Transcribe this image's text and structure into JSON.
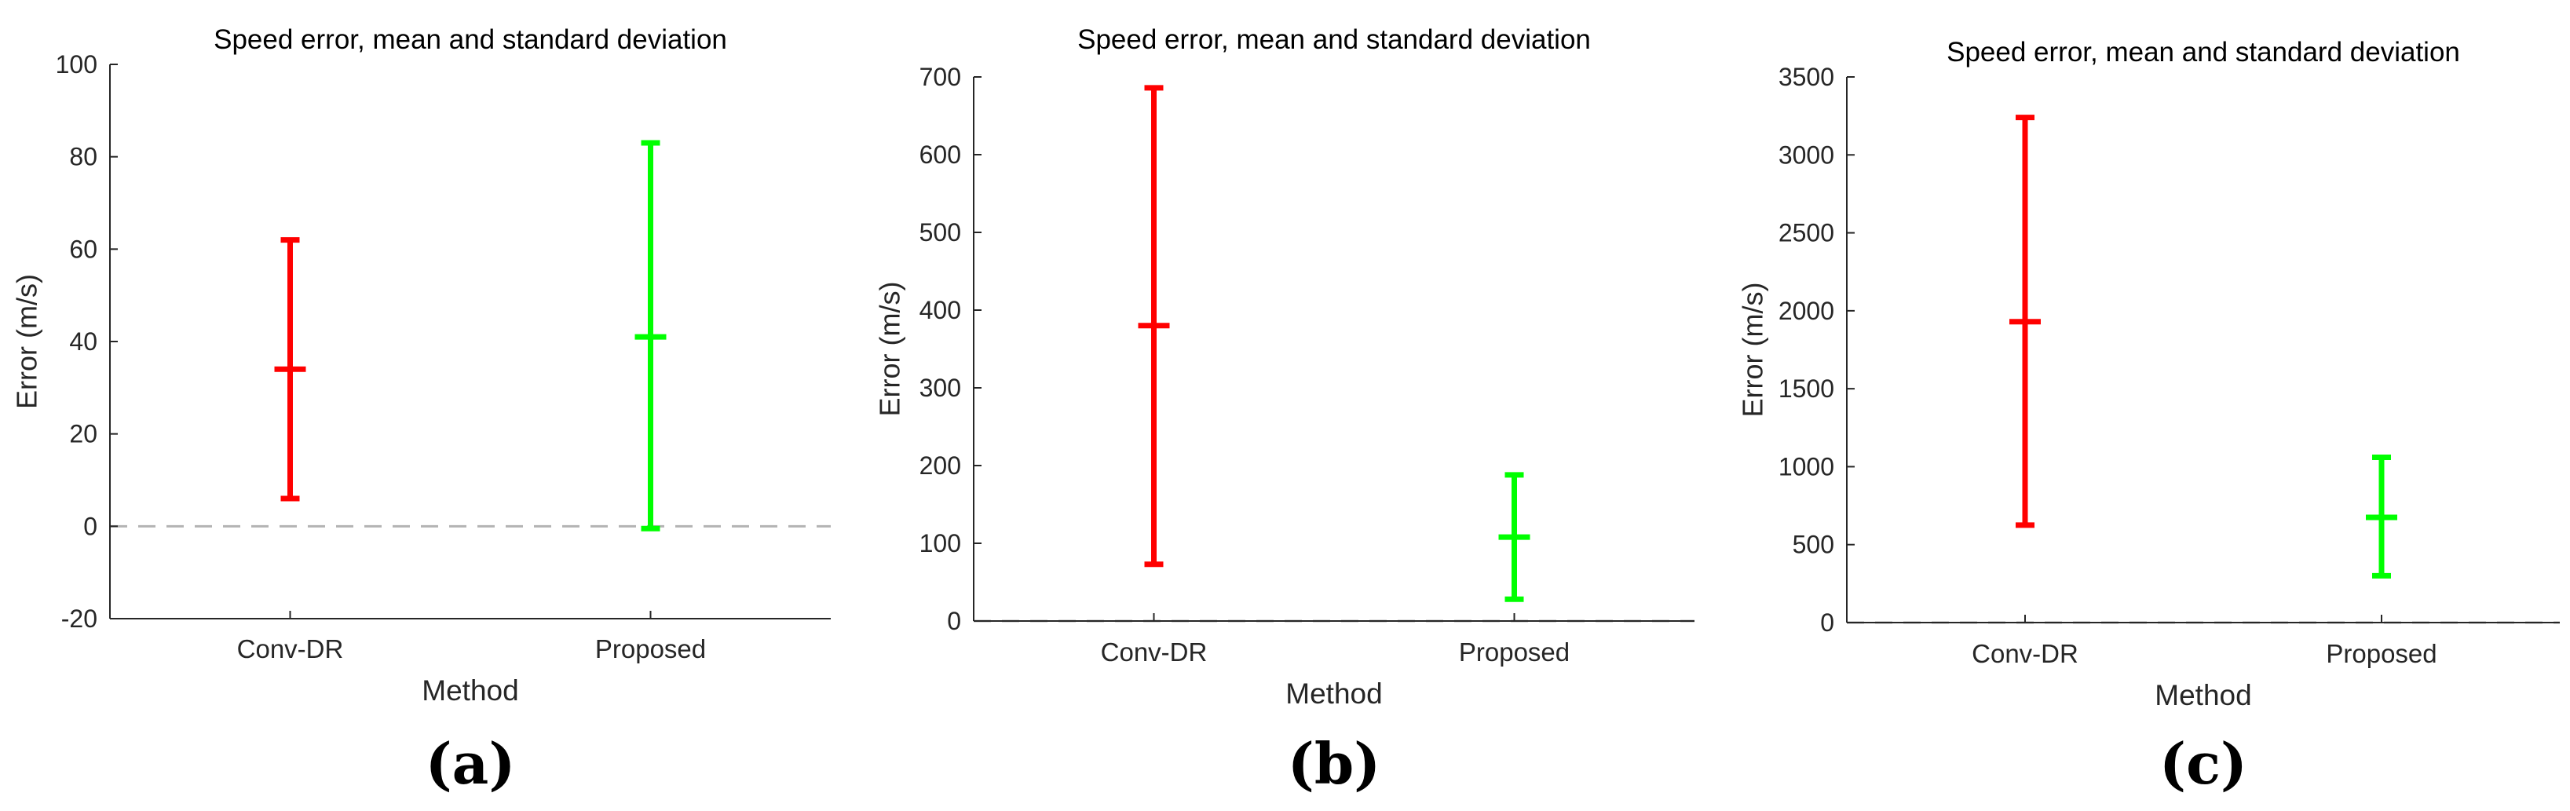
{
  "chart_data": [
    {
      "type": "errorbar",
      "panel_label": "(a)",
      "title": "Speed error, mean and standard deviation",
      "xlabel": "Method",
      "ylabel": "Error (m/s)",
      "categories": [
        "Conv-DR",
        "Proposed"
      ],
      "ylim": [
        -20,
        100
      ],
      "yticks": [
        -20,
        0,
        20,
        40,
        60,
        80,
        100
      ],
      "zero_line": "dashed",
      "series": [
        {
          "category": "Conv-DR",
          "mean": 34,
          "lower": 6,
          "upper": 62,
          "color": "#ff0000"
        },
        {
          "category": "Proposed",
          "mean": 41,
          "lower": -0.5,
          "upper": 83,
          "color": "#00ff00"
        }
      ]
    },
    {
      "type": "errorbar",
      "panel_label": "(b)",
      "title": "Speed error, mean and standard deviation",
      "xlabel": "Method",
      "ylabel": "Error (m/s)",
      "categories": [
        "Conv-DR",
        "Proposed"
      ],
      "ylim": [
        0,
        700
      ],
      "yticks": [
        0,
        100,
        200,
        300,
        400,
        500,
        600,
        700
      ],
      "zero_line": "dashed",
      "series": [
        {
          "category": "Conv-DR",
          "mean": 380,
          "lower": 73,
          "upper": 686,
          "color": "#ff0000"
        },
        {
          "category": "Proposed",
          "mean": 108,
          "lower": 28,
          "upper": 188,
          "color": "#00ff00"
        }
      ]
    },
    {
      "type": "errorbar",
      "panel_label": "(c)",
      "title": "Speed error, mean and standard deviation",
      "xlabel": "Method",
      "ylabel": "Error (m/s)",
      "categories": [
        "Conv-DR",
        "Proposed"
      ],
      "ylim": [
        0,
        3500
      ],
      "yticks": [
        0,
        500,
        1000,
        1500,
        2000,
        2500,
        3000,
        3500
      ],
      "zero_line": "dashed",
      "series": [
        {
          "category": "Conv-DR",
          "mean": 1930,
          "lower": 625,
          "upper": 3240,
          "color": "#ff0000"
        },
        {
          "category": "Proposed",
          "mean": 675,
          "lower": 300,
          "upper": 1060,
          "color": "#00ff00"
        }
      ]
    }
  ]
}
